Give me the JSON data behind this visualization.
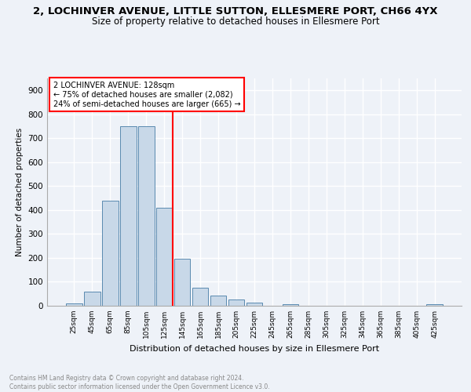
{
  "title": "2, LOCHINVER AVENUE, LITTLE SUTTON, ELLESMERE PORT, CH66 4YX",
  "subtitle": "Size of property relative to detached houses in Ellesmere Port",
  "xlabel": "Distribution of detached houses by size in Ellesmere Port",
  "ylabel": "Number of detached properties",
  "footnote1": "Contains HM Land Registry data © Crown copyright and database right 2024.",
  "footnote2": "Contains public sector information licensed under the Open Government Licence v3.0.",
  "bar_labels": [
    "25sqm",
    "45sqm",
    "65sqm",
    "85sqm",
    "105sqm",
    "125sqm",
    "145sqm",
    "165sqm",
    "185sqm",
    "205sqm",
    "225sqm",
    "245sqm",
    "265sqm",
    "285sqm",
    "305sqm",
    "325sqm",
    "345sqm",
    "365sqm",
    "385sqm",
    "405sqm",
    "425sqm"
  ],
  "bar_values": [
    10,
    58,
    438,
    750,
    750,
    410,
    198,
    75,
    42,
    27,
    12,
    0,
    8,
    0,
    0,
    0,
    0,
    0,
    0,
    0,
    5
  ],
  "bar_color": "#c8d8e8",
  "bar_edge_color": "#5a8ab0",
  "annotation_box_text": "2 LOCHINVER AVENUE: 128sqm\n← 75% of detached houses are smaller (2,082)\n24% of semi-detached houses are larger (665) →",
  "annotation_line_color": "red",
  "annotation_box_edge_color": "red",
  "ylim": [
    0,
    950
  ],
  "yticks": [
    0,
    100,
    200,
    300,
    400,
    500,
    600,
    700,
    800,
    900
  ],
  "bg_color": "#eef2f8",
  "plot_bg_color": "#eef2f8",
  "grid_color": "white",
  "title_fontsize": 9.5,
  "subtitle_fontsize": 8.5,
  "footnote_color": "#888888"
}
